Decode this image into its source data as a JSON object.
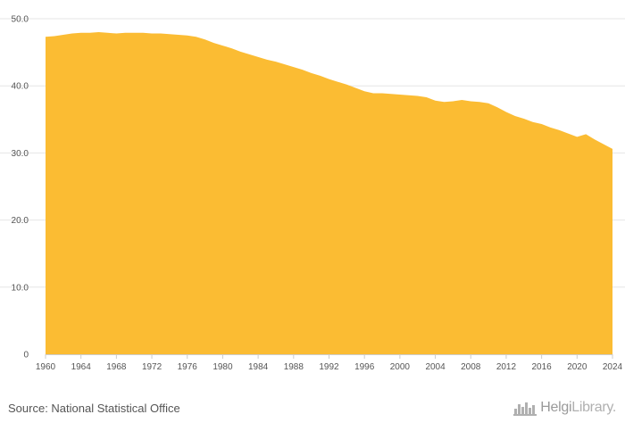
{
  "chart_data": {
    "type": "area",
    "title": "",
    "xlabel": "",
    "ylabel": "",
    "ylim": [
      0,
      50
    ],
    "y_ticks": [
      "0",
      "10.0",
      "20.0",
      "30.0",
      "40.0",
      "50.0"
    ],
    "x_ticks": [
      "1960",
      "1964",
      "1968",
      "1972",
      "1976",
      "1980",
      "1984",
      "1988",
      "1992",
      "1996",
      "2000",
      "2004",
      "2008",
      "2012",
      "2016",
      "2020",
      "2024"
    ],
    "grid": true,
    "fill_color": "#FBBC33",
    "x": [
      1960,
      1961,
      1962,
      1963,
      1964,
      1965,
      1966,
      1967,
      1968,
      1969,
      1970,
      1971,
      1972,
      1973,
      1974,
      1975,
      1976,
      1977,
      1978,
      1979,
      1980,
      1981,
      1982,
      1983,
      1984,
      1985,
      1986,
      1987,
      1988,
      1989,
      1990,
      1991,
      1992,
      1993,
      1994,
      1995,
      1996,
      1997,
      1998,
      1999,
      2000,
      2001,
      2002,
      2003,
      2004,
      2005,
      2006,
      2007,
      2008,
      2009,
      2010,
      2011,
      2012,
      2013,
      2014,
      2015,
      2016,
      2017,
      2018,
      2019,
      2020,
      2021,
      2022,
      2023,
      2024
    ],
    "values": [
      47.3,
      47.4,
      47.6,
      47.8,
      47.9,
      47.9,
      48.0,
      47.9,
      47.8,
      47.9,
      47.9,
      47.9,
      47.8,
      47.8,
      47.7,
      47.6,
      47.5,
      47.3,
      46.9,
      46.4,
      46.0,
      45.6,
      45.1,
      44.7,
      44.3,
      43.9,
      43.6,
      43.2,
      42.8,
      42.4,
      41.9,
      41.5,
      41.0,
      40.6,
      40.2,
      39.7,
      39.2,
      38.9,
      38.9,
      38.8,
      38.7,
      38.6,
      38.5,
      38.3,
      37.8,
      37.6,
      37.7,
      37.9,
      37.7,
      37.6,
      37.4,
      36.8,
      36.1,
      35.5,
      35.1,
      34.6,
      34.3,
      33.8,
      33.4,
      32.9,
      32.4,
      32.8,
      32.0,
      31.3,
      30.6
    ]
  },
  "footer": {
    "source": "Source: National Statistical Office",
    "logo_bold": "Helgi",
    "logo_light": "Library."
  }
}
